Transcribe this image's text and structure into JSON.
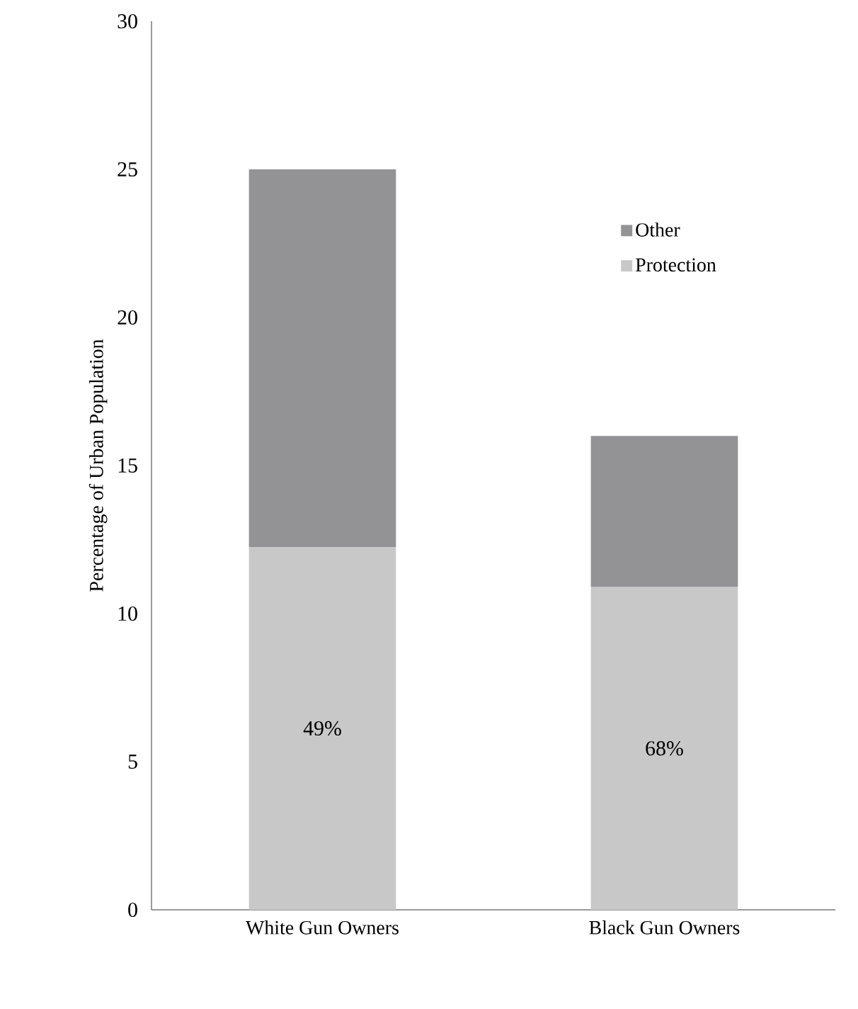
{
  "chart_data": {
    "type": "bar",
    "stacked": true,
    "categories": [
      "White Gun Owners",
      "Black Gun Owners"
    ],
    "ylabel": "Percentage of Urban Population",
    "ylim": [
      0,
      30
    ],
    "yticks": [
      0,
      5,
      10,
      15,
      20,
      25,
      30
    ],
    "legend": "right",
    "series": [
      {
        "name": "Protection",
        "color": "#c8c8c9",
        "values": [
          12.25,
          10.9
        ]
      },
      {
        "name": "Other",
        "color": "#939396",
        "values": [
          12.75,
          5.1
        ]
      }
    ],
    "annotations": [
      "49%",
      "68%"
    ]
  }
}
